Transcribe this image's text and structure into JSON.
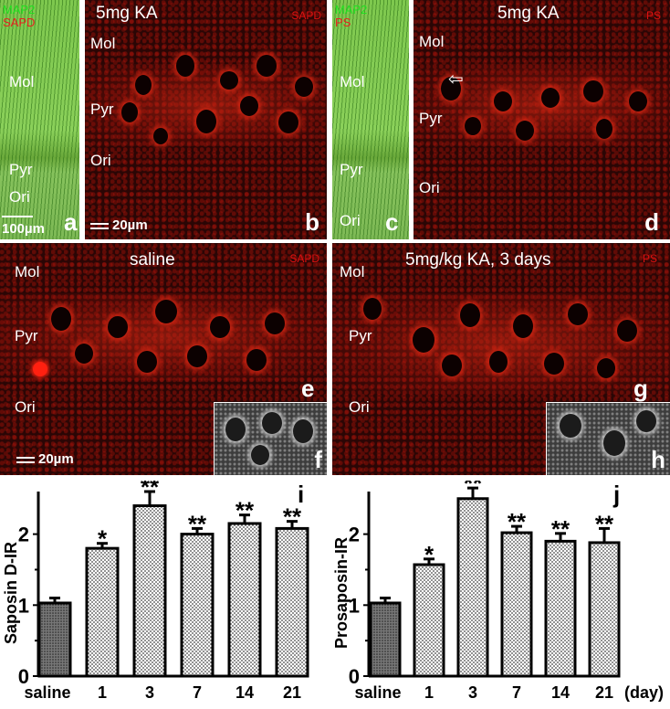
{
  "panels": {
    "a": {
      "stain_top": "MAP2",
      "stain_bottom": "SAPD",
      "layers": [
        "Mol",
        "Pyr",
        "Ori"
      ],
      "scale": "100µm",
      "letter": "a"
    },
    "b": {
      "title": "5mg KA",
      "tag": "SAPD",
      "layers": [
        "Mol",
        "Pyr",
        "Ori"
      ],
      "scale": "20µm",
      "letter": "b"
    },
    "c": {
      "stain_top": "MAP2",
      "stain_bottom": "PS",
      "layers": [
        "Mol",
        "Pyr",
        "Ori"
      ],
      "letter": "c"
    },
    "d": {
      "title": "5mg KA",
      "tag": "PS",
      "layers": [
        "Mol",
        "Pyr",
        "Ori"
      ],
      "letter": "d"
    },
    "e": {
      "title": "saline",
      "tag": "SAPD",
      "layers": [
        "Mol",
        "Pyr",
        "Ori"
      ],
      "scale": "20µm",
      "letter": "e",
      "inset_letter": "f"
    },
    "g": {
      "title": "5mg/kg KA, 3 days",
      "tag": "PS",
      "layers": [
        "Mol",
        "Pyr",
        "Ori"
      ],
      "letter": "g",
      "inset_letter": "h"
    }
  },
  "colors": {
    "bar_edge": "#000000",
    "saline_fill": "#555555",
    "dot_fill": "#888888",
    "stain_green": "#22e022",
    "stain_red": "#e82020"
  },
  "chart_data": [
    {
      "type": "bar",
      "panel_letter": "i",
      "categories": [
        "saline",
        "1",
        "3",
        "7",
        "14",
        "21"
      ],
      "values": [
        1.03,
        1.8,
        2.4,
        2.0,
        2.15,
        2.08
      ],
      "errors": [
        0.07,
        0.07,
        0.2,
        0.08,
        0.12,
        0.1
      ],
      "significance": [
        "",
        "*",
        "**",
        "**",
        "**",
        "**"
      ],
      "ylabel": "Saposin D-IR",
      "xlabel": "",
      "yticks": [
        0,
        1,
        2
      ],
      "ylim": [
        0,
        2.6
      ]
    },
    {
      "type": "bar",
      "panel_letter": "j",
      "categories": [
        "saline",
        "1",
        "3",
        "7",
        "14",
        "21"
      ],
      "values": [
        1.03,
        1.57,
        2.5,
        2.02,
        1.9,
        1.88
      ],
      "errors": [
        0.07,
        0.08,
        0.15,
        0.09,
        0.11,
        0.2
      ],
      "significance": [
        "",
        "*",
        "**",
        "**",
        "**",
        "**"
      ],
      "ylabel": "Prosaposin-IR",
      "xlabel": "(day)",
      "yticks": [
        0,
        1,
        2
      ],
      "ylim": [
        0,
        2.6
      ]
    }
  ]
}
